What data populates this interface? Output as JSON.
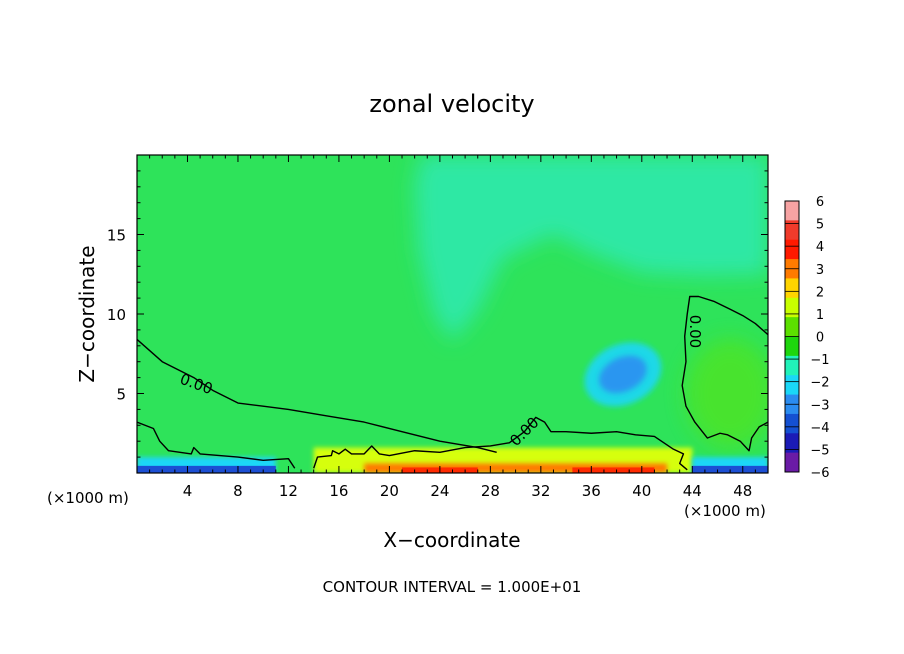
{
  "chart_data": {
    "type": "heatmap",
    "title": "zonal velocity",
    "xlabel": "X−coordinate",
    "ylabel": "Z−coordinate",
    "x_unit_left": "(×1000 m)",
    "x_unit_right": "(×1000 m)",
    "xlim": [
      0,
      50
    ],
    "ylim": [
      0,
      20
    ],
    "x_ticks": [
      4,
      8,
      12,
      16,
      20,
      24,
      28,
      32,
      36,
      40,
      44,
      48
    ],
    "y_ticks": [
      5,
      10,
      15
    ],
    "contour_label": "0.00",
    "footer": "CONTOUR INTERVAL = 1.000E+01",
    "colorbar": {
      "levels": [
        6,
        5,
        4,
        3,
        2,
        1,
        0,
        -1,
        -2,
        -3,
        -4,
        -5,
        -6
      ],
      "labels": [
        "6",
        "5",
        "4",
        "3",
        "2",
        "1",
        "0",
        "−1",
        "−2",
        "−3",
        "−4",
        "−5",
        "−6"
      ],
      "colors": [
        "#f7a3a3",
        "#f03b2b",
        "#ff1a00",
        "#ff7b00",
        "#ffd400",
        "#c8ff00",
        "#5ce000",
        "#1ed60d",
        "#21f2b9",
        "#1ad7f7",
        "#2a8cf0",
        "#1450d2",
        "#1b1bb6",
        "#6a1ba6"
      ]
    },
    "background_color": "#2ee35a",
    "features": [
      {
        "name": "upper-cyan-region",
        "type": "region",
        "level": -1,
        "color": "#2de8a4"
      },
      {
        "name": "negative-core",
        "type": "blob",
        "center": [
          38.5,
          6.2
        ],
        "level": -2.5,
        "color": "#2a96f0"
      },
      {
        "name": "near-surface-positive-jet",
        "type": "band",
        "x_range": [
          14,
          44
        ],
        "level": 3,
        "color": "#ff7a00"
      },
      {
        "name": "near-surface-negative-left",
        "type": "band",
        "x_range": [
          0,
          11
        ],
        "level": -4,
        "color": "#1c4fd4"
      },
      {
        "name": "near-surface-negative-right",
        "type": "band",
        "x_range": [
          44,
          50
        ],
        "level": -4,
        "color": "#1c4fd4"
      }
    ],
    "zero_contours": [
      [
        [
          0,
          8.4
        ],
        [
          2,
          7.0
        ],
        [
          4.5,
          6.0
        ],
        [
          6,
          5.2
        ],
        [
          8,
          4.4
        ],
        [
          10,
          4.2
        ],
        [
          12,
          4.0
        ],
        [
          15,
          3.6
        ],
        [
          18,
          3.2
        ],
        [
          21,
          2.6
        ],
        [
          24,
          2.0
        ],
        [
          27,
          1.6
        ],
        [
          28.5,
          1.3
        ]
      ],
      [
        [
          0,
          3.2
        ],
        [
          1.3,
          2.8
        ],
        [
          1.8,
          2.0
        ],
        [
          2.5,
          1.4
        ],
        [
          4.3,
          1.2
        ],
        [
          4.5,
          1.6
        ],
        [
          5,
          1.2
        ],
        [
          8,
          1.0
        ],
        [
          10,
          0.8
        ],
        [
          12,
          0.9
        ],
        [
          12.5,
          0.3
        ]
      ],
      [
        [
          14,
          0.3
        ],
        [
          14.3,
          1.0
        ],
        [
          15.4,
          1.1
        ],
        [
          15.5,
          1.4
        ],
        [
          16,
          1.2
        ],
        [
          16.5,
          1.5
        ],
        [
          17,
          1.2
        ],
        [
          18,
          1.2
        ],
        [
          18.6,
          1.7
        ],
        [
          19.2,
          1.2
        ],
        [
          20,
          1.1
        ],
        [
          22,
          1.4
        ],
        [
          24,
          1.3
        ],
        [
          26,
          1.6
        ],
        [
          28,
          1.7
        ],
        [
          29.5,
          1.9
        ],
        [
          30.7,
          2.6
        ],
        [
          31.6,
          3.5
        ],
        [
          32.3,
          3.2
        ],
        [
          32.8,
          2.6
        ],
        [
          34,
          2.6
        ],
        [
          36,
          2.5
        ],
        [
          38,
          2.6
        ],
        [
          39.5,
          2.4
        ],
        [
          41,
          2.3
        ],
        [
          42.5,
          1.5
        ],
        [
          43.3,
          1.2
        ],
        [
          43,
          0.6
        ],
        [
          43.6,
          0.2
        ]
      ],
      [
        [
          50,
          8.7
        ],
        [
          49,
          9.4
        ],
        [
          48,
          9.9
        ],
        [
          47,
          10.3
        ],
        [
          45.7,
          10.8
        ],
        [
          44.5,
          11.1
        ],
        [
          43.8,
          11.1
        ],
        [
          43.6,
          10.0
        ],
        [
          43.4,
          8.6
        ],
        [
          43.5,
          7.0
        ],
        [
          43.2,
          5.5
        ],
        [
          43.5,
          4.2
        ],
        [
          44.2,
          3.2
        ],
        [
          45.2,
          2.2
        ],
        [
          46.2,
          2.5
        ],
        [
          46.8,
          2.4
        ],
        [
          47.8,
          2.0
        ],
        [
          48.5,
          1.4
        ],
        [
          48.7,
          2.2
        ],
        [
          49.3,
          2.9
        ],
        [
          50,
          3.2
        ]
      ]
    ],
    "contour_labels_at": [
      [
        4.7,
        5.6
      ],
      [
        30.7,
        2.6
      ],
      [
        44.2,
        8.9
      ]
    ],
    "grid": false,
    "legend": "colorbar-right"
  }
}
